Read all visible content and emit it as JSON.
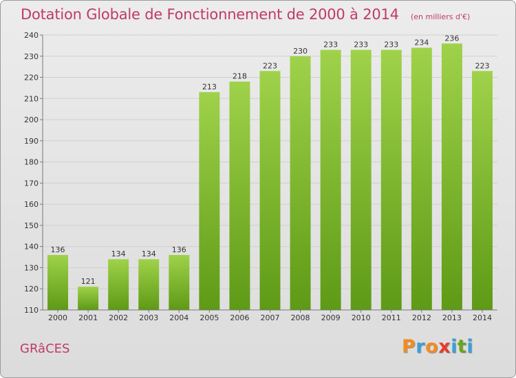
{
  "header": {
    "title": "Dotation Globale de Fonctionnement de 2000 à 2014",
    "subtitle": "(en milliers d'€)"
  },
  "footer": {
    "commune": "GRâCES",
    "logo_letters": [
      "P",
      "r",
      "o",
      "x",
      "i",
      "t",
      "i"
    ],
    "logo_colors": [
      "#f28c1f",
      "#3b9fd8",
      "#f28c1f",
      "#e63b2e",
      "#3b9fd8",
      "#6aa51b",
      "#3b9fd8"
    ]
  },
  "colors": {
    "bar_top": "#9fd24a",
    "bar_bottom": "#5e9a16",
    "accent": "#c0396b",
    "grid": "#cfcfcf"
  },
  "chart_data": {
    "type": "bar",
    "title": "Dotation Globale de Fonctionnement de 2000 à 2014",
    "subtitle": "(en milliers d'€)",
    "categories": [
      "2000",
      "2001",
      "2002",
      "2003",
      "2004",
      "2005",
      "2006",
      "2007",
      "2008",
      "2009",
      "2010",
      "2011",
      "2012",
      "2013",
      "2014"
    ],
    "values": [
      136,
      121,
      134,
      134,
      136,
      213,
      218,
      223,
      230,
      233,
      233,
      233,
      234,
      236,
      223
    ],
    "ylim": [
      110,
      240
    ],
    "yticks": [
      110,
      120,
      130,
      140,
      150,
      160,
      170,
      180,
      190,
      200,
      210,
      220,
      230,
      240
    ],
    "grid": true,
    "xlabel": "",
    "ylabel": ""
  }
}
